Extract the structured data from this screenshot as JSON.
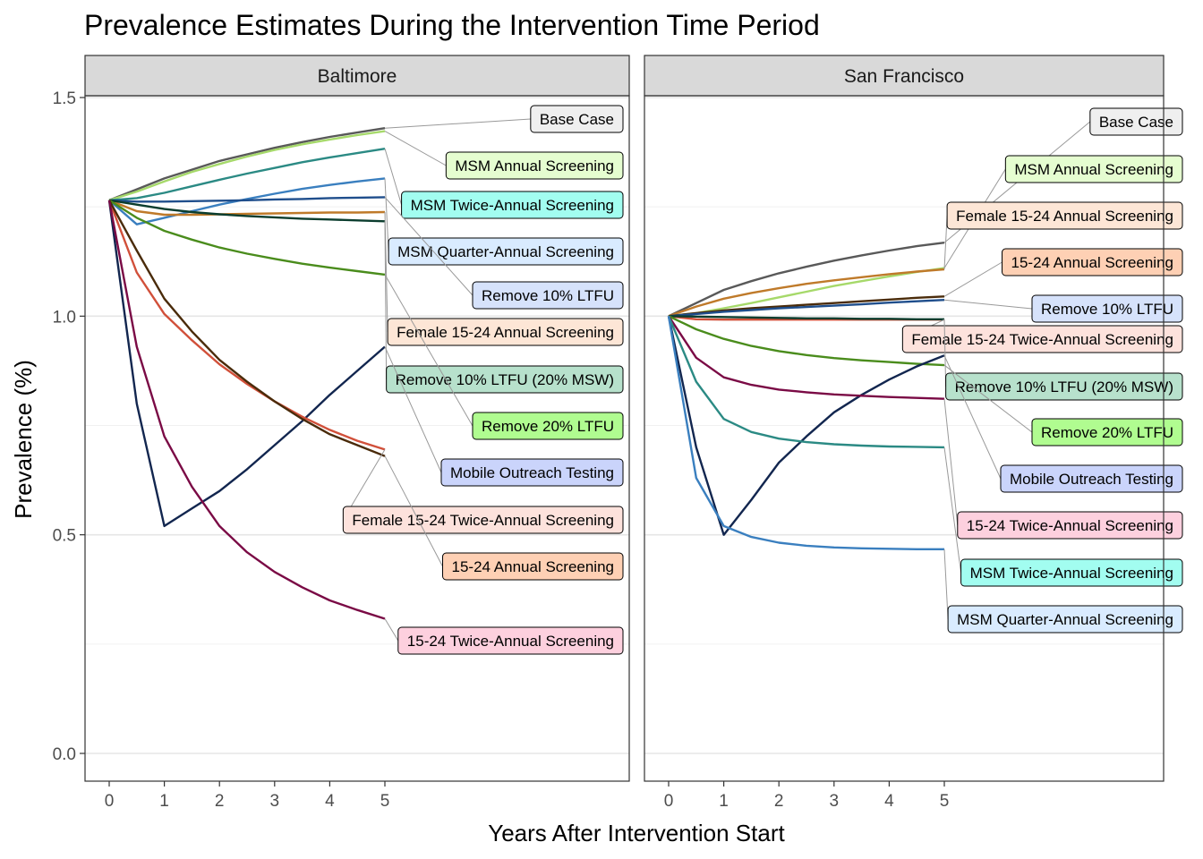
{
  "chart_data": {
    "type": "line",
    "title": "Prevalence Estimates During the Intervention Time Period",
    "xlabel": "Years After Intervention Start",
    "ylabel": "Prevalence (%)",
    "x": [
      0,
      0.5,
      1,
      1.5,
      2,
      2.5,
      3,
      3.5,
      4,
      4.5,
      5
    ],
    "xticks": [
      0,
      1,
      2,
      3,
      4,
      5
    ],
    "yticks": [
      0.0,
      0.5,
      1.0,
      1.5
    ],
    "ytick_labels": [
      "0.0",
      "0.5",
      "1.0",
      "1.5"
    ],
    "xlim": [
      -0.4,
      9.4
    ],
    "ylim": [
      -0.07,
      1.6
    ],
    "grid": true,
    "legend": "direct labels with leader lines",
    "colors": {
      "Base Case": "#595959",
      "MSM Annual Screening": "#a6d96a",
      "MSM Twice-Annual Screening": "#2b8a84",
      "MSM Quarter-Annual Screening": "#3a7fbf",
      "Remove 10% LTFU": "#1f4e8c",
      "Female 15-24 Annual Screening": "#bf7a2a",
      "Remove 10% LTFU (20% MSW)": "#0b3d2e",
      "Remove 20% LTFU": "#4a8c1c",
      "Mobile Outreach Testing": "#12264f",
      "Female 15-24 Twice-Annual Screening": "#d1503a",
      "15-24 Annual Screening": "#4a2b0a",
      "15-24 Twice-Annual Screening": "#7a0a45"
    },
    "fills": {
      "Base Case": "#efefef",
      "MSM Annual Screening": "#e5fdd0",
      "MSM Twice-Annual Screening": "#a2fdf0",
      "MSM Quarter-Annual Screening": "#d9ebff",
      "Remove 10% LTFU": "#d6e2fb",
      "Female 15-24 Annual Screening": "#fde6d6",
      "Remove 10% LTFU (20% MSW)": "#b7e1cc",
      "Remove 20% LTFU": "#b0fc90",
      "Mobile Outreach Testing": "#cad4fb",
      "Female 15-24 Twice-Annual Screening": "#fde2dc",
      "15-24 Annual Screening": "#fed0b4",
      "15-24 Twice-Annual Screening": "#fdd0de"
    },
    "panels": [
      {
        "name": "Baltimore",
        "series": [
          {
            "name": "Base Case",
            "values": [
              1.265,
              1.29,
              1.315,
              1.335,
              1.355,
              1.37,
              1.385,
              1.398,
              1.41,
              1.42,
              1.43
            ]
          },
          {
            "name": "MSM Annual Screening",
            "values": [
              1.265,
              1.285,
              1.308,
              1.33,
              1.348,
              1.365,
              1.38,
              1.393,
              1.404,
              1.414,
              1.423
            ]
          },
          {
            "name": "MSM Twice-Annual Screening",
            "values": [
              1.265,
              1.27,
              1.282,
              1.297,
              1.312,
              1.326,
              1.339,
              1.352,
              1.363,
              1.373,
              1.383
            ]
          },
          {
            "name": "MSM Quarter-Annual Screening",
            "values": [
              1.265,
              1.21,
              1.225,
              1.24,
              1.255,
              1.268,
              1.28,
              1.291,
              1.3,
              1.308,
              1.315
            ]
          },
          {
            "name": "Remove 10% LTFU",
            "values": [
              1.265,
              1.262,
              1.262,
              1.263,
              1.264,
              1.265,
              1.267,
              1.268,
              1.27,
              1.271,
              1.272
            ]
          },
          {
            "name": "Female 15-24 Annual Screening",
            "values": [
              1.265,
              1.24,
              1.232,
              1.232,
              1.233,
              1.234,
              1.235,
              1.236,
              1.237,
              1.237,
              1.238
            ]
          },
          {
            "name": "Remove 10% LTFU (20% MSW)",
            "values": [
              1.265,
              1.255,
              1.245,
              1.238,
              1.233,
              1.229,
              1.226,
              1.223,
              1.221,
              1.219,
              1.217
            ]
          },
          {
            "name": "Remove 20% LTFU",
            "values": [
              1.265,
              1.225,
              1.195,
              1.175,
              1.157,
              1.143,
              1.131,
              1.12,
              1.111,
              1.103,
              1.095
            ]
          },
          {
            "name": "Mobile Outreach Testing",
            "values": [
              1.265,
              0.8,
              0.52,
              0.56,
              0.6,
              0.65,
              0.705,
              0.76,
              0.82,
              0.875,
              0.93
            ]
          },
          {
            "name": "Female 15-24 Twice-Annual Screening",
            "values": [
              1.265,
              1.1,
              1.005,
              0.945,
              0.89,
              0.845,
              0.805,
              0.77,
              0.74,
              0.715,
              0.695
            ]
          },
          {
            "name": "15-24 Annual Screening",
            "values": [
              1.265,
              1.15,
              1.04,
              0.965,
              0.9,
              0.85,
              0.805,
              0.765,
              0.73,
              0.705,
              0.68
            ]
          },
          {
            "name": "15-24 Twice-Annual Screening",
            "values": [
              1.265,
              0.93,
              0.725,
              0.61,
              0.52,
              0.46,
              0.415,
              0.38,
              0.35,
              0.328,
              0.308
            ]
          }
        ]
      },
      {
        "name": "San Francisco",
        "series": [
          {
            "name": "Base Case",
            "values": [
              1.0,
              1.03,
              1.06,
              1.08,
              1.098,
              1.113,
              1.127,
              1.139,
              1.15,
              1.16,
              1.168
            ]
          },
          {
            "name": "MSM Annual Screening",
            "values": [
              1.0,
              1.007,
              1.018,
              1.03,
              1.043,
              1.056,
              1.069,
              1.08,
              1.091,
              1.101,
              1.11
            ]
          },
          {
            "name": "Female 15-24 Annual Screening",
            "values": [
              1.0,
              1.022,
              1.04,
              1.053,
              1.064,
              1.074,
              1.082,
              1.089,
              1.096,
              1.102,
              1.107
            ]
          },
          {
            "name": "15-24 Annual Screening",
            "values": [
              1.0,
              1.007,
              1.013,
              1.018,
              1.022,
              1.026,
              1.03,
              1.034,
              1.038,
              1.042,
              1.045
            ]
          },
          {
            "name": "Remove 10% LTFU",
            "values": [
              1.0,
              1.005,
              1.01,
              1.014,
              1.018,
              1.021,
              1.024,
              1.027,
              1.031,
              1.034,
              1.037
            ]
          },
          {
            "name": "Female 15-24 Twice-Annual Screening",
            "values": [
              1.0,
              0.993,
              0.992,
              0.992,
              0.992,
              0.992,
              0.992,
              0.992,
              0.992,
              0.992,
              0.992
            ]
          },
          {
            "name": "Remove 10% LTFU (20% MSW)",
            "values": [
              1.0,
              0.999,
              0.998,
              0.997,
              0.996,
              0.995,
              0.995,
              0.994,
              0.994,
              0.993,
              0.993
            ]
          },
          {
            "name": "Remove 20% LTFU",
            "values": [
              1.0,
              0.97,
              0.948,
              0.932,
              0.92,
              0.911,
              0.904,
              0.899,
              0.895,
              0.891,
              0.888
            ]
          },
          {
            "name": "Mobile Outreach Testing",
            "values": [
              1.0,
              0.7,
              0.5,
              0.58,
              0.665,
              0.725,
              0.78,
              0.82,
              0.855,
              0.885,
              0.91
            ]
          },
          {
            "name": "15-24 Twice-Annual Screening",
            "values": [
              1.0,
              0.905,
              0.86,
              0.843,
              0.832,
              0.826,
              0.821,
              0.818,
              0.815,
              0.813,
              0.811
            ]
          },
          {
            "name": "MSM Twice-Annual Screening",
            "values": [
              1.0,
              0.85,
              0.765,
              0.735,
              0.72,
              0.712,
              0.707,
              0.704,
              0.702,
              0.701,
              0.7
            ]
          },
          {
            "name": "MSM Quarter-Annual Screening",
            "values": [
              1.0,
              0.63,
              0.52,
              0.495,
              0.482,
              0.475,
              0.471,
              0.469,
              0.468,
              0.467,
              0.467
            ]
          }
        ]
      }
    ]
  }
}
